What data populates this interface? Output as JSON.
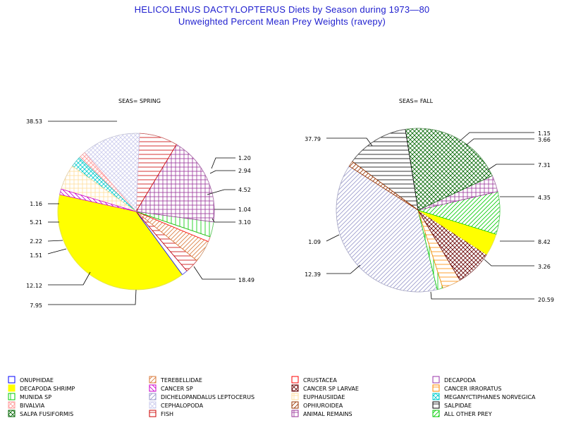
{
  "title": "HELICOLENUS DACTYLOPTERUS Diets by Season during 1973—80",
  "subtitle": "Unweighted Percent Mean Prey Weights (ravepy)",
  "legend_items": [
    {
      "name": "ONUPHIDAE",
      "color": "#0000ff",
      "pattern": "empty"
    },
    {
      "name": "TEREBELLIDAE",
      "color": "#d97a3a",
      "pattern": "diag-right"
    },
    {
      "name": "CRUSTACEA",
      "color": "#ff0000",
      "pattern": "empty"
    },
    {
      "name": "DECAPODA",
      "color": "#9933aa",
      "pattern": "empty"
    },
    {
      "name": "DECAPODA SHRIMP",
      "color": "#ffff00",
      "pattern": "solid"
    },
    {
      "name": "CANCER SP",
      "color": "#cc00cc",
      "pattern": "diag-left"
    },
    {
      "name": "CANCER SP LARVAE",
      "color": "#660000",
      "pattern": "crosshatch"
    },
    {
      "name": "CANCER IRRORATUS",
      "color": "#ff8800",
      "pattern": "horizontal"
    },
    {
      "name": "MUNIDA SP",
      "color": "#00cc00",
      "pattern": "vertical"
    },
    {
      "name": "DICHELOPANDALUS LEPTOCERUS",
      "color": "#9999cc",
      "pattern": "diag-right"
    },
    {
      "name": "EUPHAUSIIDAE",
      "color": "#ffdd99",
      "pattern": "grid"
    },
    {
      "name": "MEGANYCTIPHANES NORVEGICA",
      "color": "#00cccc",
      "pattern": "crosshatch"
    },
    {
      "name": "BIVALVIA",
      "color": "#ff9999",
      "pattern": "crosshatch"
    },
    {
      "name": "CEPHALOPODA",
      "color": "#ccccee",
      "pattern": "crosshatch"
    },
    {
      "name": "OPHIUROIDEA",
      "color": "#993300",
      "pattern": "diag-right"
    },
    {
      "name": "SALPIDAE",
      "color": "#000000",
      "pattern": "horizontal"
    },
    {
      "name": "SALPA FUSIFORMIS",
      "color": "#006600",
      "pattern": "crosshatch"
    },
    {
      "name": "FISH",
      "color": "#cc0000",
      "pattern": "horizontal"
    },
    {
      "name": "ANIMAL REMAINS",
      "color": "#993399",
      "pattern": "grid"
    },
    {
      "name": "ALL OTHER PREY",
      "color": "#00cc00",
      "pattern": "diag-right"
    }
  ],
  "chart_data": [
    {
      "type": "pie",
      "title": "SEAS= SPRING",
      "slices": [
        {
          "label": "38.53",
          "value": 38.53,
          "category": "DECAPODA SHRIMP"
        },
        {
          "label": "1.20",
          "value": 1.2,
          "category": "ONUPHIDAE"
        },
        {
          "label": "2.94",
          "value": 2.94,
          "category": "FISH"
        },
        {
          "label": "4.52",
          "value": 4.52,
          "category": "TEREBELLIDAE"
        },
        {
          "label": "1.04",
          "value": 1.04,
          "category": "CRUSTACEA"
        },
        {
          "label": "3.10",
          "value": 3.1,
          "category": "MUNIDA SP"
        },
        {
          "label": "18.49",
          "value": 18.49,
          "category": "ANIMAL REMAINS"
        },
        {
          "label": "7.95",
          "value": 7.95,
          "category": "FISH"
        },
        {
          "label": "12.12",
          "value": 12.12,
          "category": "CEPHALOPODA"
        },
        {
          "label": "1.51",
          "value": 1.51,
          "category": "BIVALVIA"
        },
        {
          "label": "2.22",
          "value": 2.22,
          "category": "MEGANYCTIPHANES NORVEGICA"
        },
        {
          "label": "5.21",
          "value": 5.21,
          "category": "EUPHAUSIIDAE"
        },
        {
          "label": "1.16",
          "value": 1.16,
          "category": "CANCER SP"
        }
      ]
    },
    {
      "type": "pie",
      "title": "SEAS= FALL",
      "slices": [
        {
          "label": "37.79",
          "value": 37.79,
          "category": "DICHELOPANDALUS LEPTOCERUS"
        },
        {
          "label": "1.15",
          "value": 1.15,
          "category": "MUNIDA SP"
        },
        {
          "label": "3.66",
          "value": 3.66,
          "category": "CANCER IRRORATUS"
        },
        {
          "label": "7.31",
          "value": 7.31,
          "category": "CANCER SP LARVAE"
        },
        {
          "label": "4.35",
          "value": 4.35,
          "category": "DECAPODA SHRIMP"
        },
        {
          "label": "8.42",
          "value": 8.42,
          "category": "ALL OTHER PREY"
        },
        {
          "label": "3.26",
          "value": 3.26,
          "category": "ANIMAL REMAINS"
        },
        {
          "label": "20.59",
          "value": 20.59,
          "category": "SALPA FUSIFORMIS"
        },
        {
          "label": "12.39",
          "value": 12.39,
          "category": "SALPIDAE"
        },
        {
          "label": "1.09",
          "value": 1.09,
          "category": "OPHIUROIDEA"
        }
      ]
    }
  ]
}
